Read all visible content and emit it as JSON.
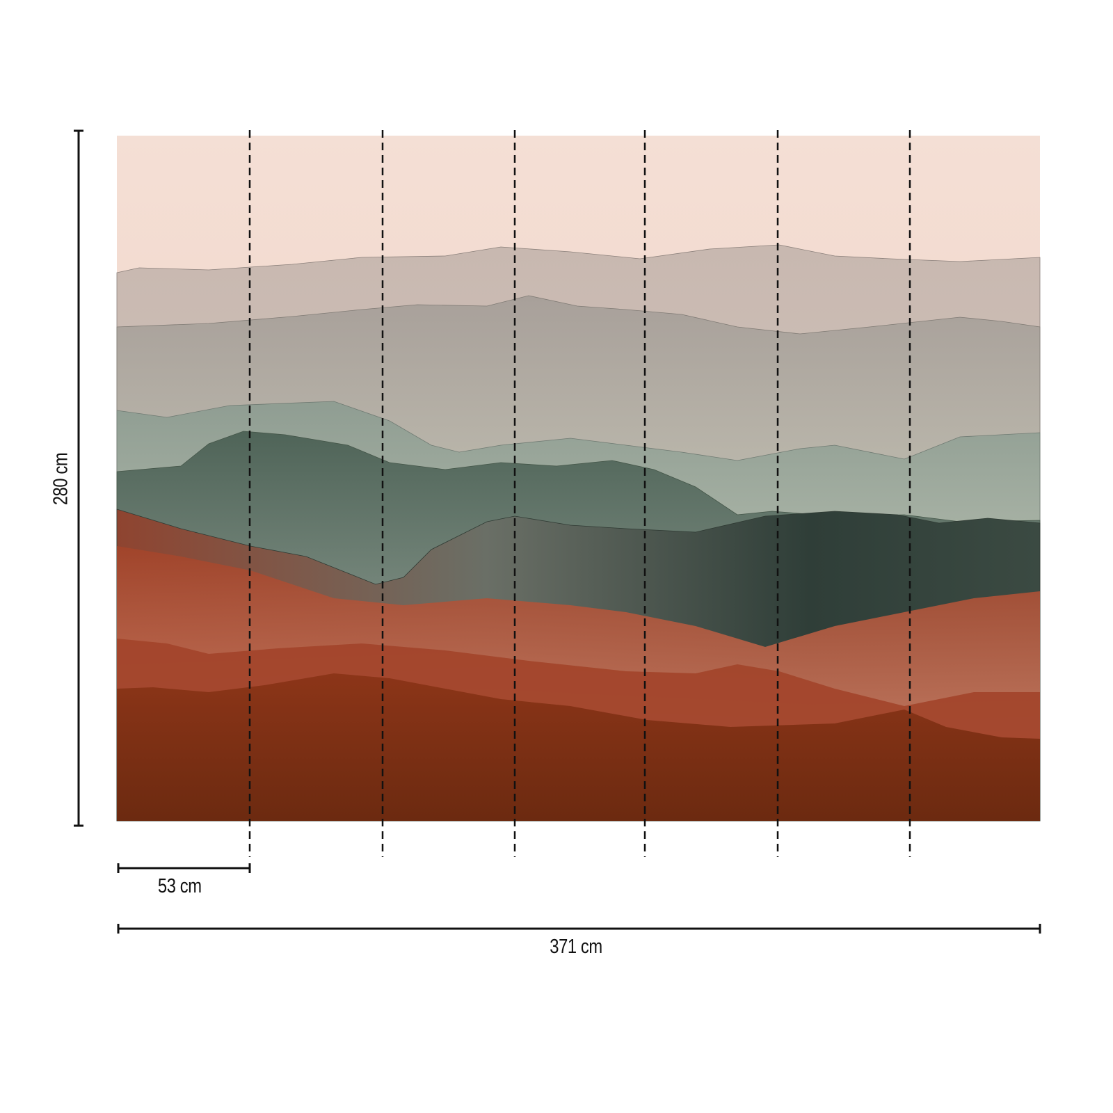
{
  "mural": {
    "subject": "layered misty mountain landscape",
    "panel_count": 7,
    "colors": {
      "sky": "#f3d9cc",
      "haze": "#c9bdb4",
      "sage": "#8a9a8a",
      "dark_green": "#2f3e38",
      "rust": "#8c3518",
      "deep_rust": "#6e2610"
    }
  },
  "dimensions": {
    "height_label": "280 cm",
    "panel_width_label": "53 cm",
    "total_width_label": "371 cm"
  }
}
